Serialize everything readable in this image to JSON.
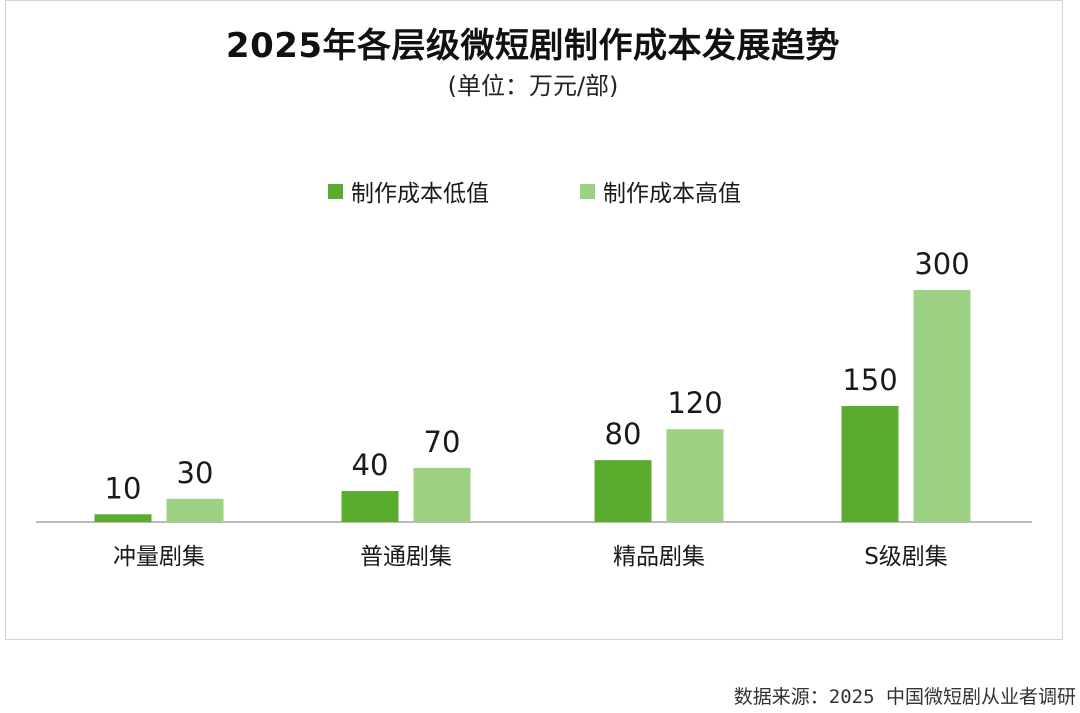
{
  "colors": {
    "low": "#5aac2e",
    "high": "#9dd183",
    "axis": "#bbbbbb",
    "label": "#1a1a1a"
  },
  "chart_data": {
    "type": "bar",
    "title": "2025年各层级微短剧制作成本发展趋势",
    "subtitle": "(单位：万元/部)",
    "categories": [
      "冲量剧集",
      "普通剧集",
      "精品剧集",
      "S级剧集"
    ],
    "series": [
      {
        "name": "制作成本低值",
        "values": [
          10,
          40,
          80,
          150
        ],
        "color": "#5aac2e"
      },
      {
        "name": "制作成本高值",
        "values": [
          30,
          70,
          120,
          300
        ],
        "color": "#9dd183"
      }
    ],
    "ylim": [
      0,
      300
    ],
    "grid": false,
    "legend_position": "top-center",
    "data_labels": true
  },
  "source": "数据来源：2025 中国微短剧从业者调研"
}
